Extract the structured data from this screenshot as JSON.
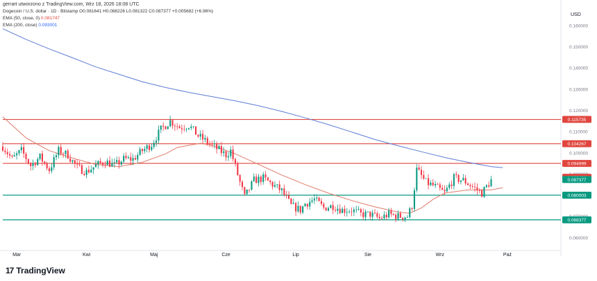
{
  "header": {
    "attribution": "gerrart utworzono z TradingView.com, Wrz 18, 2026 18:08 UTC",
    "symbol_line": "Dogecoin / U.S. dollar · 1D · Bitstamp O0.081641 H0.088226 L0.081322 C0.087377 +0.005682 (+6.96%)",
    "ema50_label": "EMA (50, close, 0)",
    "ema50_value": "0.081747",
    "ema200_label": "EMA (200, close)",
    "ema200_value": "0.093001"
  },
  "footer": {
    "logo_text": "TradingView",
    "logo_mark": "17"
  },
  "chart_data": {
    "type": "candlestick",
    "title": "Dogecoin / U.S. dollar · 1D · Bitstamp",
    "currency_label": "USD",
    "y_range": [
      0.0565,
      0.1675
    ],
    "y_ticks": [
      0.16,
      0.15,
      0.14,
      0.13,
      0.12,
      0.11,
      0.1,
      0.09,
      0.08,
      0.07,
      0.06
    ],
    "y_tick_labels": [
      "0.160000",
      "0.150000",
      "0.140000",
      "0.130000",
      "0.120000",
      "0.110000",
      "0.100000",
      "0.090000",
      "0.080000",
      "0.070000",
      "0.060000"
    ],
    "x_labels": [
      "Mar",
      "Kwi",
      "Maj",
      "Cze",
      "Lip",
      "Sie",
      "Wrz",
      "Paź"
    ],
    "x_label_days": [
      6,
      36,
      65,
      96,
      126,
      157,
      188,
      217
    ],
    "start_date": "2026-02-24",
    "horizontal_levels": [
      {
        "value": 0.115735,
        "label": "0.115735",
        "color": "#e0463e"
      },
      {
        "value": 0.104267,
        "label": "0.104267",
        "color": "#e0463e"
      },
      {
        "value": 0.094999,
        "label": "0.094999",
        "color": "#e0463e"
      },
      {
        "value": 0.080003,
        "label": "0.080003",
        "color": "#089981"
      },
      {
        "value": 0.068377,
        "label": "0.068377",
        "color": "#089981"
      }
    ],
    "price_badges": [
      {
        "value": 0.088438,
        "label": "0.088438",
        "color": "#e0463e"
      },
      {
        "value": 0.087377,
        "label": "0.087377",
        "color": "#089981"
      }
    ],
    "ema200": {
      "name": "EMA (200, close)",
      "color": "#5b7bd5",
      "points": [
        [
          0,
          0.1585
        ],
        [
          10,
          0.1535
        ],
        [
          20,
          0.149
        ],
        [
          30,
          0.1448
        ],
        [
          40,
          0.1405
        ],
        [
          50,
          0.137
        ],
        [
          60,
          0.1335
        ],
        [
          70,
          0.1308
        ],
        [
          80,
          0.1285
        ],
        [
          90,
          0.1265
        ],
        [
          100,
          0.1245
        ],
        [
          110,
          0.1222
        ],
        [
          120,
          0.1195
        ],
        [
          130,
          0.1165
        ],
        [
          140,
          0.1133
        ],
        [
          150,
          0.1098
        ],
        [
          160,
          0.1063
        ],
        [
          170,
          0.1033
        ],
        [
          180,
          0.1005
        ],
        [
          190,
          0.0978
        ],
        [
          200,
          0.0955
        ],
        [
          210,
          0.0935
        ],
        [
          215,
          0.093
        ]
      ]
    },
    "ema50": {
      "name": "EMA (50, close, 0)",
      "color": "#e07b6a",
      "points": [
        [
          0,
          0.117
        ],
        [
          5,
          0.112
        ],
        [
          10,
          0.107
        ],
        [
          20,
          0.101
        ],
        [
          30,
          0.0975
        ],
        [
          40,
          0.0945
        ],
        [
          50,
          0.0935
        ],
        [
          60,
          0.0955
        ],
        [
          70,
          0.0995
        ],
        [
          75,
          0.1025
        ],
        [
          80,
          0.1035
        ],
        [
          85,
          0.1045
        ],
        [
          90,
          0.1035
        ],
        [
          100,
          0.0995
        ],
        [
          110,
          0.0945
        ],
        [
          120,
          0.0895
        ],
        [
          130,
          0.085
        ],
        [
          140,
          0.081
        ],
        [
          150,
          0.0775
        ],
        [
          160,
          0.0745
        ],
        [
          170,
          0.072
        ],
        [
          175,
          0.0715
        ],
        [
          180,
          0.074
        ],
        [
          185,
          0.078
        ],
        [
          190,
          0.081
        ],
        [
          200,
          0.0825
        ],
        [
          210,
          0.0825
        ],
        [
          215,
          0.0835
        ]
      ]
    },
    "anchors": [
      [
        0,
        0.103
      ],
      [
        4,
        0.097
      ],
      [
        8,
        0.101
      ],
      [
        12,
        0.094
      ],
      [
        16,
        0.098
      ],
      [
        20,
        0.092
      ],
      [
        24,
        0.101
      ],
      [
        28,
        0.099
      ],
      [
        32,
        0.093
      ],
      [
        36,
        0.091
      ],
      [
        40,
        0.094
      ],
      [
        44,
        0.096
      ],
      [
        48,
        0.094
      ],
      [
        52,
        0.097
      ],
      [
        56,
        0.097
      ],
      [
        60,
        0.101
      ],
      [
        64,
        0.104
      ],
      [
        68,
        0.111
      ],
      [
        72,
        0.115
      ],
      [
        76,
        0.112
      ],
      [
        80,
        0.113
      ],
      [
        84,
        0.108
      ],
      [
        88,
        0.105
      ],
      [
        92,
        0.102
      ],
      [
        96,
        0.099
      ],
      [
        98,
        0.101
      ],
      [
        102,
        0.086
      ],
      [
        104,
        0.079
      ],
      [
        108,
        0.087
      ],
      [
        112,
        0.088
      ],
      [
        116,
        0.085
      ],
      [
        120,
        0.082
      ],
      [
        124,
        0.075
      ],
      [
        128,
        0.073
      ],
      [
        130,
        0.076
      ],
      [
        134,
        0.078
      ],
      [
        138,
        0.074
      ],
      [
        142,
        0.075
      ],
      [
        146,
        0.073
      ],
      [
        150,
        0.073
      ],
      [
        154,
        0.071
      ],
      [
        158,
        0.071
      ],
      [
        162,
        0.069
      ],
      [
        166,
        0.071
      ],
      [
        170,
        0.07
      ],
      [
        174,
        0.07
      ],
      [
        176,
        0.075
      ],
      [
        178,
        0.092
      ],
      [
        182,
        0.086
      ],
      [
        186,
        0.084
      ],
      [
        190,
        0.081
      ],
      [
        194,
        0.088
      ],
      [
        198,
        0.087
      ],
      [
        202,
        0.084
      ],
      [
        206,
        0.081
      ],
      [
        210,
        0.087
      ]
    ]
  }
}
